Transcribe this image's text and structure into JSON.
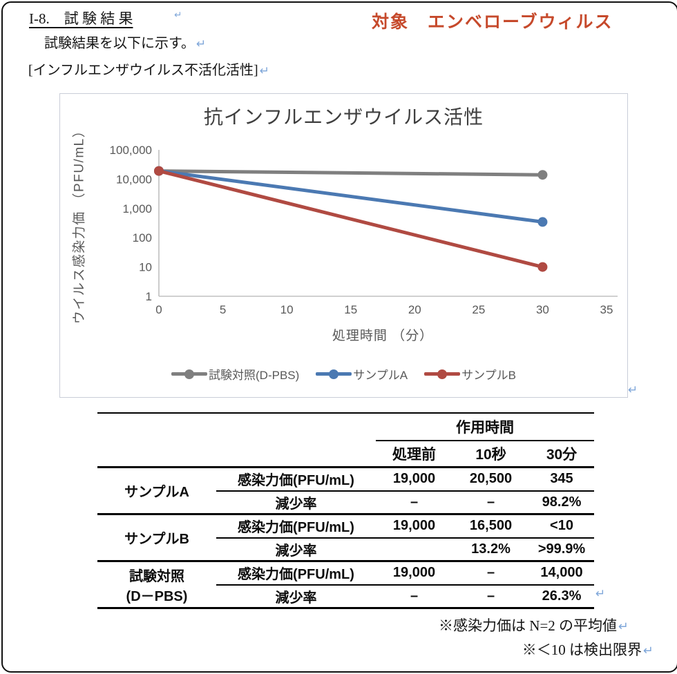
{
  "page": {
    "section_title": "I-8.　試 験 結 果",
    "target_label": "対象　エンベローブウィルス",
    "intro_line": "試験結果を以下に示す。",
    "bracket_line": "[インフルエンザウイルス不活化活性]"
  },
  "icons": {
    "return_mark": "↵"
  },
  "colors": {
    "accent_red": "#c6492b",
    "return_mark_blue": "#7ea6d9",
    "axis_gray": "#c0c0c0",
    "tick_text": "#595959"
  },
  "chart_data": {
    "type": "line",
    "title": "抗インフルエンザウイルス活性",
    "xlabel": "処理時間 （分）",
    "ylabel": "ウイルス感染力価 （PFU/mL）",
    "x_ticks": [
      0,
      5,
      10,
      15,
      20,
      25,
      30,
      35
    ],
    "xlim": [
      0,
      35
    ],
    "y_scale": "log",
    "ylim": [
      1,
      100000
    ],
    "y_tick_labels": [
      "100,000",
      "10,000",
      "1,000",
      "100",
      "10",
      "1"
    ],
    "grid": false,
    "legend_position": "bottom",
    "series": [
      {
        "name": "試験対照(D-PBS)",
        "color": "#7f7f7f",
        "x": [
          0,
          30
        ],
        "y": [
          19000,
          14000
        ]
      },
      {
        "name": "サンプルA",
        "color": "#4b79b2",
        "x": [
          0,
          30
        ],
        "y": [
          19000,
          345
        ]
      },
      {
        "name": "サンプルB",
        "color": "#b04a42",
        "x": [
          0,
          30
        ],
        "y": [
          19000,
          10
        ]
      }
    ]
  },
  "table": {
    "col_group_header": "作用時間",
    "col_headers": [
      "処理前",
      "10秒",
      "30分"
    ],
    "groups": [
      {
        "label": "サンプルA",
        "label2": "",
        "rows": [
          {
            "metric": "感染力価(PFU/mL)",
            "values": [
              "19,000",
              "20,500",
              "345"
            ]
          },
          {
            "metric": "減少率",
            "values": [
              "–",
              "–",
              "98.2%"
            ]
          }
        ]
      },
      {
        "label": "サンプルB",
        "label2": "",
        "rows": [
          {
            "metric": "感染力価(PFU/mL)",
            "values": [
              "19,000",
              "16,500",
              "<10"
            ]
          },
          {
            "metric": "減少率",
            "values": [
              "",
              "13.2%",
              ">99.9%"
            ]
          }
        ]
      },
      {
        "label": "試験対照",
        "label2": "(D－PBS)",
        "rows": [
          {
            "metric": "感染力価(PFU/mL)",
            "values": [
              "19,000",
              "–",
              "14,000"
            ]
          },
          {
            "metric": "減少率",
            "values": [
              "–",
              "–",
              "26.3%"
            ]
          }
        ]
      }
    ]
  },
  "footnotes": {
    "note1": "※感染力価は N=2 の平均値",
    "note2": "※＜10 は検出限界"
  }
}
